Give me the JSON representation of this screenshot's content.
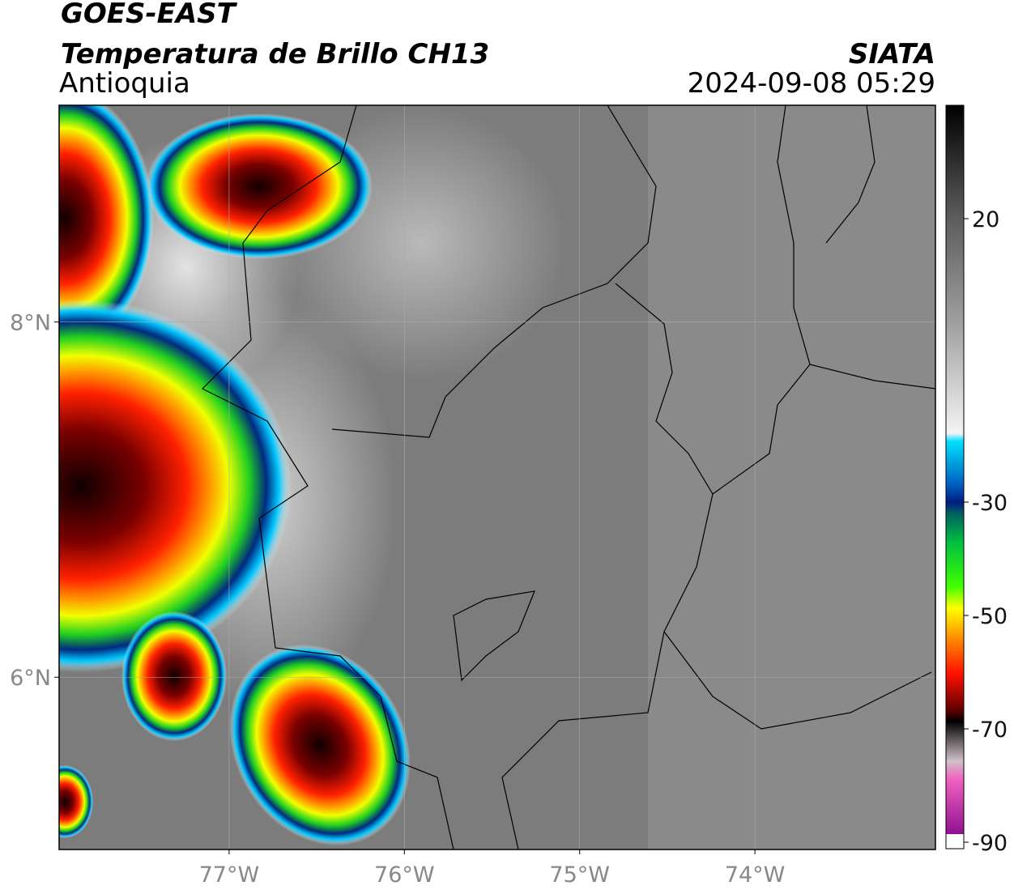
{
  "header": {
    "title": "GOES-EAST",
    "subtitle": "Temperatura de Brillo CH13",
    "region": "Antioquia",
    "source": "SIATA",
    "timestamp": "2024-09-08 05:29"
  },
  "map": {
    "xlim": [
      -77.97,
      -72.97
    ],
    "ylim": [
      5.03,
      9.22
    ],
    "xticks": [
      {
        "value": -77,
        "label": "77°W"
      },
      {
        "value": -76,
        "label": "76°W"
      },
      {
        "value": -75,
        "label": "75°W"
      },
      {
        "value": -74,
        "label": "74°W"
      }
    ],
    "yticks": [
      {
        "value": 8,
        "label": "8°N"
      },
      {
        "value": 6,
        "label": "6°N"
      }
    ]
  },
  "colorbar": {
    "lim": [
      -90,
      40
    ],
    "ticks": [
      20,
      -30,
      -50,
      -70,
      -90
    ]
  }
}
